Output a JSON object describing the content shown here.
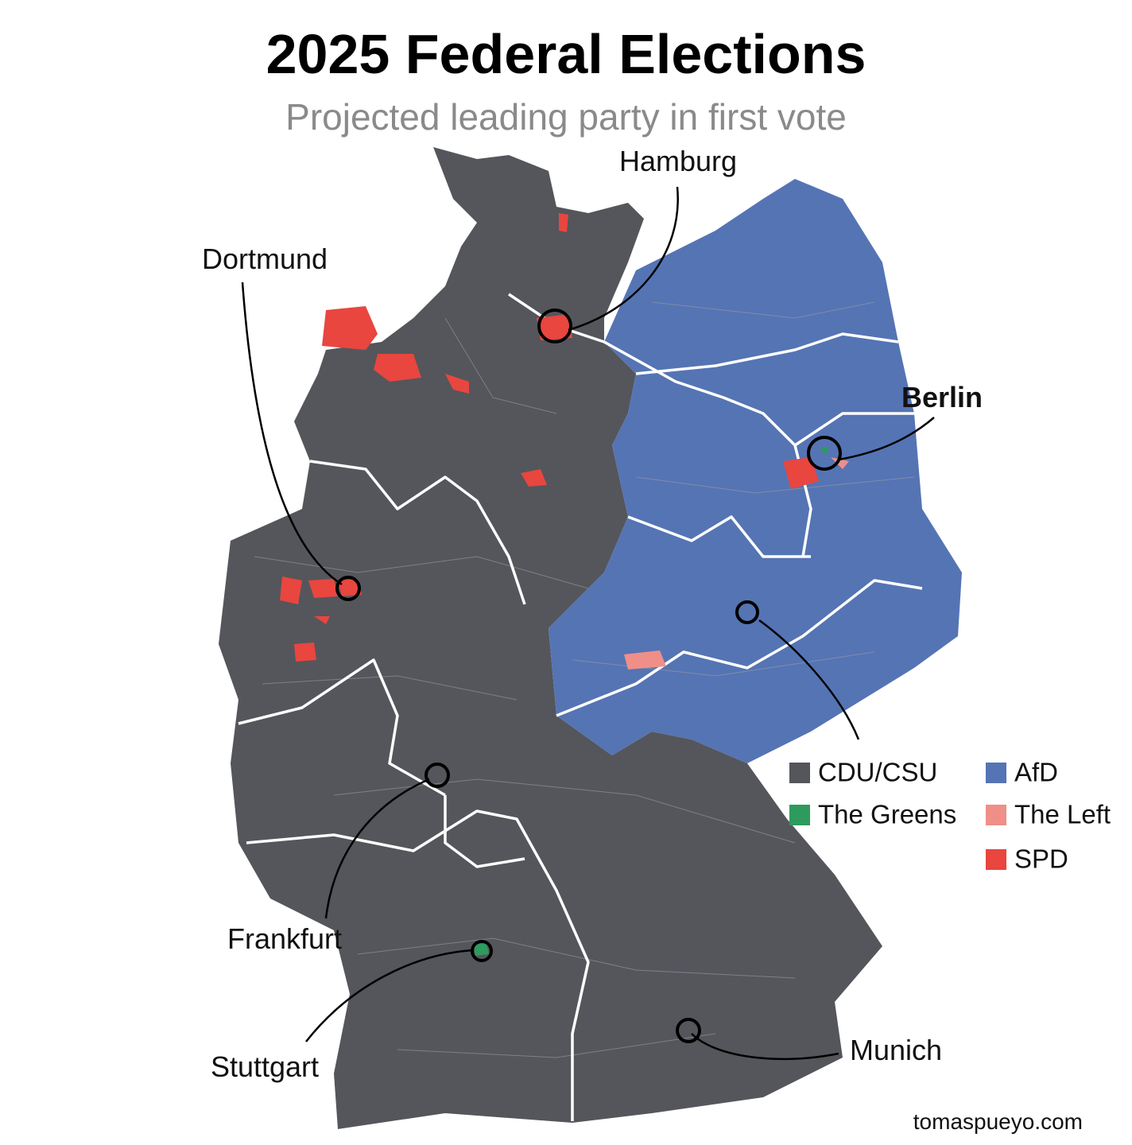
{
  "header": {
    "title": "2025 Federal Elections",
    "subtitle": "Projected leading party in first vote"
  },
  "cities": [
    {
      "label": "Hamburg"
    },
    {
      "label": "Dortmund"
    },
    {
      "label": "Berlin"
    },
    {
      "label": "Frankfurt"
    },
    {
      "label": "Stuttgart"
    },
    {
      "label": "Munich"
    }
  ],
  "legend": [
    {
      "label": "CDU/CSU",
      "color": "#54565b"
    },
    {
      "label": "AfD",
      "color": "#5574b4"
    },
    {
      "label": "The Greens",
      "color": "#2e9a5e"
    },
    {
      "label": "The Left",
      "color": "#ef8f88"
    },
    {
      "label": "SPD",
      "color": "#e8463f"
    }
  ],
  "source": "tomaspueyo.com"
}
